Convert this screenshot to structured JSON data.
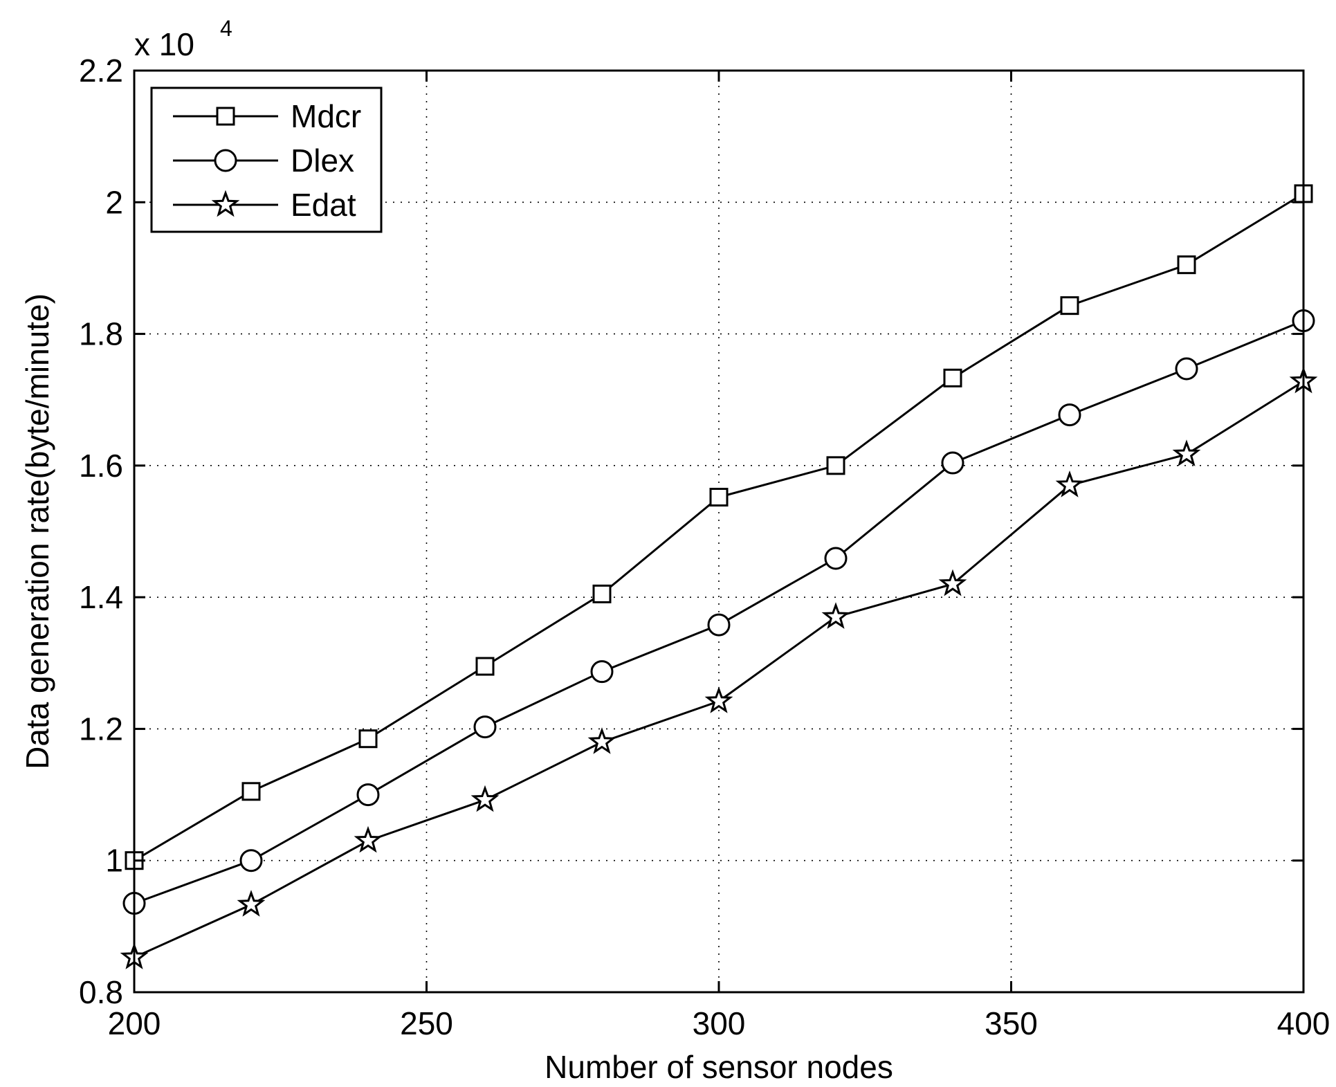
{
  "chart_data": {
    "type": "line",
    "xlabel": "Number of sensor nodes",
    "ylabel": "Data generation rate(byte/minute)",
    "y_multiplier_label": "x 10",
    "y_multiplier_exponent": "4",
    "xlim": [
      200,
      400
    ],
    "ylim": [
      0.8,
      2.2
    ],
    "x_ticks": [
      200,
      250,
      300,
      350,
      400
    ],
    "x_tick_labels": [
      "200",
      "250",
      "300",
      "350",
      "400"
    ],
    "y_ticks": [
      0.8,
      1.0,
      1.2,
      1.4,
      1.6,
      1.8,
      2.0,
      2.2
    ],
    "y_tick_labels": [
      "0.8",
      "1",
      "1.2",
      "1.4",
      "1.6",
      "1.8",
      "2",
      "2.2"
    ],
    "grid": true,
    "legend_position": "top-left",
    "x": [
      200,
      220,
      240,
      260,
      280,
      300,
      320,
      340,
      360,
      380,
      400
    ],
    "series": [
      {
        "name": "Mdcr",
        "marker": "square",
        "values": [
          1.0,
          1.105,
          1.185,
          1.295,
          1.405,
          1.552,
          1.6,
          1.733,
          1.843,
          1.905,
          2.013
        ]
      },
      {
        "name": "Dlex",
        "marker": "circle",
        "values": [
          0.935,
          1.0,
          1.1,
          1.203,
          1.287,
          1.358,
          1.459,
          1.604,
          1.677,
          1.747,
          1.82
        ]
      },
      {
        "name": "Edat",
        "marker": "star",
        "values": [
          0.853,
          0.933,
          1.03,
          1.092,
          1.18,
          1.242,
          1.37,
          1.42,
          1.57,
          1.617,
          1.728
        ]
      }
    ]
  }
}
